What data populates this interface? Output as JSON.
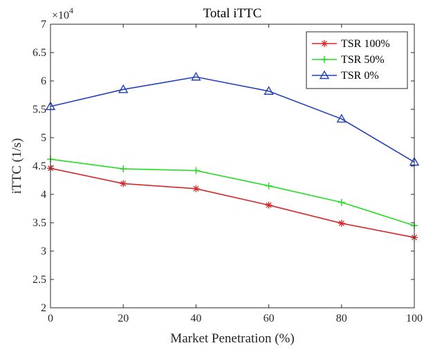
{
  "chart_data": {
    "type": "line",
    "title": "Total iTTC",
    "xlabel": "Market Penetration (%)",
    "ylabel": "iTTC (1/s)",
    "y_multiplier_base": "×10",
    "y_multiplier_exp": "4",
    "x": [
      0,
      20,
      40,
      60,
      80,
      100
    ],
    "xlim": [
      0,
      100
    ],
    "ylim": [
      2,
      7
    ],
    "x_ticks": [
      0,
      20,
      40,
      60,
      80,
      100
    ],
    "y_ticks": [
      2,
      2.5,
      3,
      3.5,
      4,
      4.5,
      5,
      5.5,
      6,
      6.5,
      7
    ],
    "y_tick_labels": [
      "2",
      "2.5",
      "3",
      "3.5",
      "4",
      "4.5",
      "5",
      "5.5",
      "6",
      "6.5",
      "7"
    ],
    "grid": false,
    "legend_position": "top-right",
    "series": [
      {
        "name": "TSR 100%",
        "color": "#d62728",
        "marker": "asterisk",
        "values": [
          4.46,
          4.19,
          4.1,
          3.81,
          3.49,
          3.24
        ]
      },
      {
        "name": "TSR 50%",
        "color": "#22dd22",
        "marker": "plus",
        "values": [
          4.62,
          4.45,
          4.42,
          4.15,
          3.86,
          3.45
        ]
      },
      {
        "name": "TSR 0%",
        "color": "#1f3fbf",
        "marker": "triangle",
        "values": [
          5.55,
          5.85,
          6.07,
          5.82,
          5.33,
          4.57
        ]
      }
    ]
  }
}
